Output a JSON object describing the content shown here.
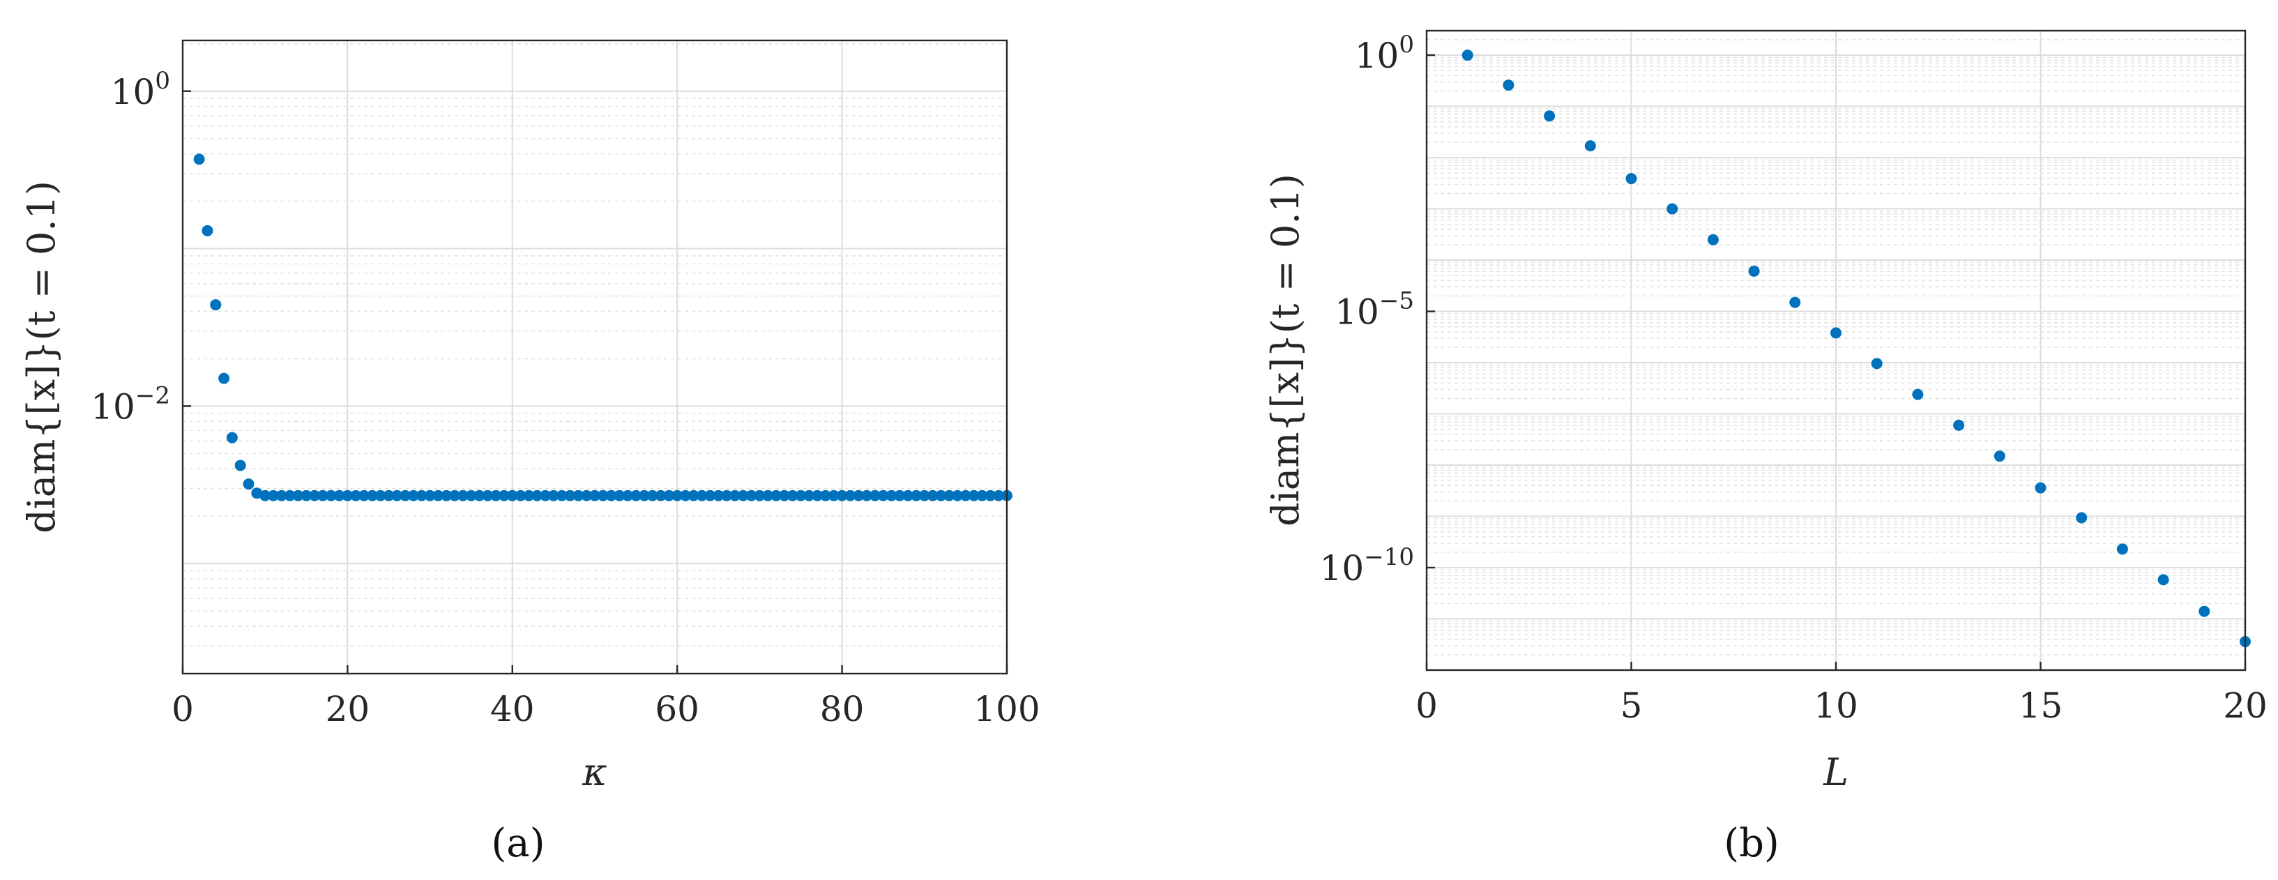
{
  "chart_data": [
    {
      "type": "scatter",
      "panel_label": "(a)",
      "xlabel": "κ",
      "ylabel": "diam{[x]}(t = 0.1)",
      "xlim": [
        0,
        100
      ],
      "xticks": [
        0,
        20,
        40,
        60,
        80,
        100
      ],
      "yscale": "log",
      "ylim": [
        0.0002,
        2.1
      ],
      "yticks": [
        {
          "value": 1,
          "mantissa": "10",
          "exponent": "0"
        },
        {
          "value": 0.01,
          "mantissa": "10",
          "exponent": "−2"
        }
      ],
      "grid": true,
      "color": "#0072BD",
      "series": [
        {
          "x": [
            2,
            3,
            4,
            5,
            6,
            7,
            8,
            9,
            10,
            11,
            12,
            13,
            14,
            15,
            16,
            17,
            18,
            19,
            20,
            21,
            22,
            23,
            24,
            25,
            26,
            27,
            28,
            29,
            30,
            31,
            32,
            33,
            34,
            35,
            36,
            37,
            38,
            39,
            40,
            41,
            42,
            43,
            44,
            45,
            46,
            47,
            48,
            49,
            50,
            51,
            52,
            53,
            54,
            55,
            56,
            57,
            58,
            59,
            60,
            61,
            62,
            63,
            64,
            65,
            66,
            67,
            68,
            69,
            70,
            71,
            72,
            73,
            74,
            75,
            76,
            77,
            78,
            79,
            80,
            81,
            82,
            83,
            84,
            85,
            86,
            87,
            88,
            89,
            90,
            91,
            92,
            93,
            94,
            95,
            96,
            97,
            98,
            99,
            100
          ],
          "y": [
            0.37,
            0.13,
            0.044,
            0.015,
            0.0063,
            0.0042,
            0.0032,
            0.0028,
            0.0027,
            0.0027,
            0.0027,
            0.0027,
            0.0027,
            0.0027,
            0.0027,
            0.0027,
            0.0027,
            0.0027,
            0.0027,
            0.0027,
            0.0027,
            0.0027,
            0.0027,
            0.0027,
            0.0027,
            0.0027,
            0.0027,
            0.0027,
            0.0027,
            0.0027,
            0.0027,
            0.0027,
            0.0027,
            0.0027,
            0.0027,
            0.0027,
            0.0027,
            0.0027,
            0.0027,
            0.0027,
            0.0027,
            0.0027,
            0.0027,
            0.0027,
            0.0027,
            0.0027,
            0.0027,
            0.0027,
            0.0027,
            0.0027,
            0.0027,
            0.0027,
            0.0027,
            0.0027,
            0.0027,
            0.0027,
            0.0027,
            0.0027,
            0.0027,
            0.0027,
            0.0027,
            0.0027,
            0.0027,
            0.0027,
            0.0027,
            0.0027,
            0.0027,
            0.0027,
            0.0027,
            0.0027,
            0.0027,
            0.0027,
            0.0027,
            0.0027,
            0.0027,
            0.0027,
            0.0027,
            0.0027,
            0.0027,
            0.0027,
            0.0027,
            0.0027,
            0.0027,
            0.0027,
            0.0027,
            0.0027,
            0.0027,
            0.0027,
            0.0027,
            0.0027,
            0.0027,
            0.0027,
            0.0027,
            0.0027,
            0.0027,
            0.0027,
            0.0027,
            0.0027,
            0.0027
          ]
        }
      ]
    },
    {
      "type": "scatter",
      "panel_label": "(b)",
      "xlabel": "L",
      "ylabel": "diam{[x]}(t = 0.1)",
      "xlim": [
        0,
        20
      ],
      "xticks": [
        0,
        5,
        10,
        15,
        20
      ],
      "yscale": "log",
      "ylim": [
        1e-12,
        3
      ],
      "yticks": [
        {
          "value": 1,
          "mantissa": "10",
          "exponent": "0"
        },
        {
          "value": 1e-05,
          "mantissa": "10",
          "exponent": "−5"
        },
        {
          "value": 1e-10,
          "mantissa": "10",
          "exponent": "−10"
        }
      ],
      "grid": true,
      "color": "#0072BD",
      "series": [
        {
          "x": [
            1,
            2,
            3,
            4,
            5,
            6,
            7,
            8,
            9,
            10,
            11,
            12,
            13,
            14,
            15,
            16,
            17,
            18,
            19,
            20
          ],
          "y": [
            1.0,
            0.26,
            0.065,
            0.017,
            0.0039,
            0.001,
            0.00025,
            6.1e-05,
            1.5e-05,
            3.8e-06,
            9.6e-07,
            2.4e-07,
            6e-08,
            1.5e-08,
            3.6e-09,
            9.4e-10,
            2.3e-10,
            5.8e-11,
            1.4e-11,
            3.6e-12
          ]
        }
      ]
    }
  ]
}
